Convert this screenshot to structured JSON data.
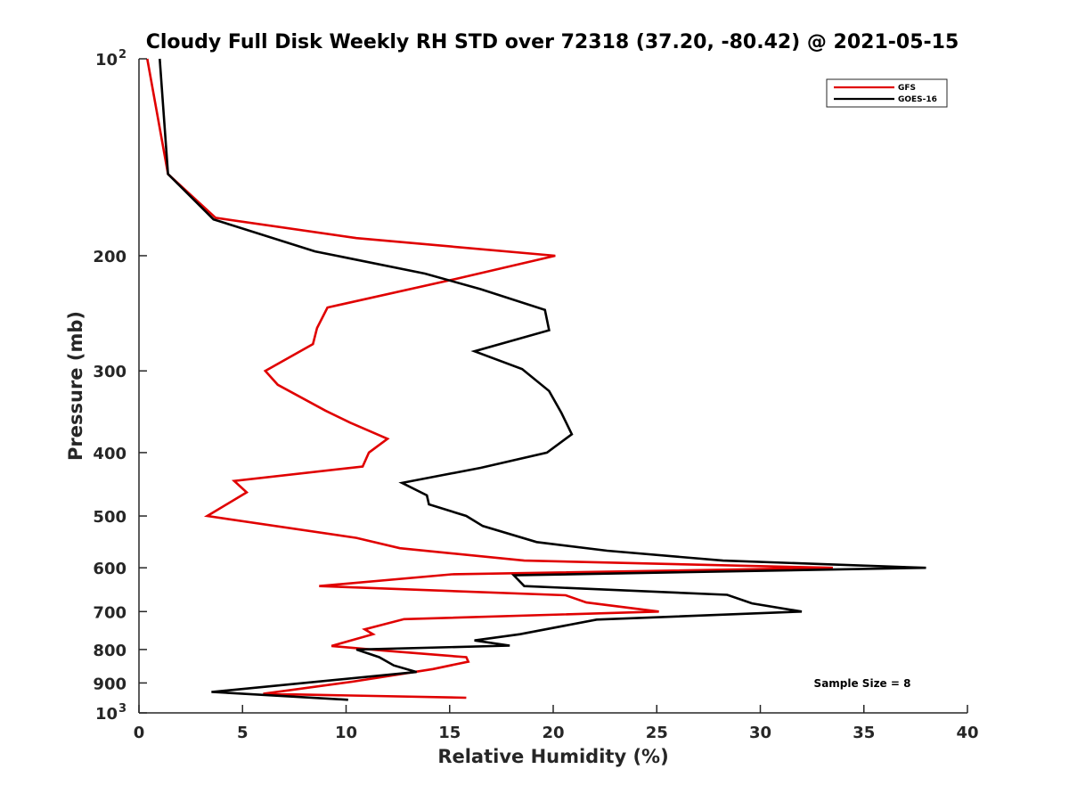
{
  "chart_data": {
    "type": "line",
    "title": "Cloudy Full Disk Weekly RH STD over 72318 (37.20, -80.42) @ 2021-05-15",
    "xlabel": "Relative Humidity (%)",
    "ylabel": "Pressure (mb)",
    "xlim": [
      0,
      40
    ],
    "ylim": [
      100,
      1000
    ],
    "yscale": "log",
    "yreversed": true,
    "xticks": [
      0,
      5,
      10,
      15,
      20,
      25,
      30,
      35,
      40
    ],
    "yticks": [
      {
        "value": 100,
        "label": "10",
        "sup": "2"
      },
      {
        "value": 200,
        "label": "200",
        "sup": ""
      },
      {
        "value": 300,
        "label": "300",
        "sup": ""
      },
      {
        "value": 400,
        "label": "400",
        "sup": ""
      },
      {
        "value": 500,
        "label": "500",
        "sup": ""
      },
      {
        "value": 600,
        "label": "600",
        "sup": ""
      },
      {
        "value": 700,
        "label": "700",
        "sup": ""
      },
      {
        "value": 800,
        "label": "800",
        "sup": ""
      },
      {
        "value": 900,
        "label": "900",
        "sup": ""
      },
      {
        "value": 1000,
        "label": "10",
        "sup": "3"
      }
    ],
    "grid": false,
    "legend_position": "top-right",
    "series": [
      {
        "name": "GFS",
        "color": "#e00000",
        "points": [
          [
            0.4,
            100
          ],
          [
            1.4,
            150
          ],
          [
            3.7,
            175
          ],
          [
            10.5,
            188
          ],
          [
            20.1,
            200
          ],
          [
            15.3,
            217
          ],
          [
            9.1,
            240
          ],
          [
            8.6,
            258
          ],
          [
            8.4,
            273
          ],
          [
            6.1,
            300
          ],
          [
            6.7,
            315
          ],
          [
            9.0,
            345
          ],
          [
            10.2,
            360
          ],
          [
            12.0,
            381
          ],
          [
            11.1,
            400
          ],
          [
            10.8,
            420
          ],
          [
            4.6,
            442
          ],
          [
            5.2,
            460
          ],
          [
            3.3,
            500
          ],
          [
            10.5,
            540
          ],
          [
            12.6,
            560
          ],
          [
            18.6,
            585
          ],
          [
            33.5,
            600
          ],
          [
            15.1,
            614
          ],
          [
            8.7,
            640
          ],
          [
            20.6,
            661
          ],
          [
            21.6,
            678
          ],
          [
            25.1,
            700
          ],
          [
            12.8,
            719
          ],
          [
            10.9,
            745
          ],
          [
            11.3,
            758
          ],
          [
            9.3,
            790
          ],
          [
            11.8,
            803
          ],
          [
            15.8,
            822
          ],
          [
            15.9,
            835
          ],
          [
            14.2,
            857
          ],
          [
            10.3,
            896
          ],
          [
            6.0,
            935
          ],
          [
            15.8,
            948
          ]
        ]
      },
      {
        "name": "GOES-16",
        "color": "#000000",
        "points": [
          [
            1.0,
            100
          ],
          [
            1.4,
            150
          ],
          [
            3.6,
            176
          ],
          [
            8.5,
            197
          ],
          [
            13.8,
            213
          ],
          [
            16.5,
            225
          ],
          [
            19.6,
            242
          ],
          [
            19.8,
            260
          ],
          [
            16.2,
            280
          ],
          [
            18.5,
            298
          ],
          [
            19.8,
            322
          ],
          [
            20.4,
            348
          ],
          [
            20.9,
            375
          ],
          [
            19.7,
            400
          ],
          [
            16.5,
            422
          ],
          [
            12.7,
            445
          ],
          [
            13.9,
            465
          ],
          [
            14.0,
            480
          ],
          [
            15.8,
            500
          ],
          [
            16.6,
            518
          ],
          [
            19.2,
            548
          ],
          [
            22.6,
            565
          ],
          [
            28.2,
            585
          ],
          [
            38.0,
            600
          ],
          [
            18.1,
            616
          ],
          [
            18.6,
            640
          ],
          [
            28.4,
            660
          ],
          [
            29.6,
            680
          ],
          [
            32.0,
            700
          ],
          [
            22.1,
            720
          ],
          [
            18.4,
            758
          ],
          [
            16.2,
            775
          ],
          [
            17.9,
            789
          ],
          [
            10.5,
            800
          ],
          [
            11.6,
            822
          ],
          [
            12.3,
            846
          ],
          [
            13.4,
            866
          ],
          [
            3.5,
            929
          ],
          [
            10.1,
            955
          ]
        ]
      }
    ],
    "annotations": [
      "Sample Size = 8"
    ]
  }
}
